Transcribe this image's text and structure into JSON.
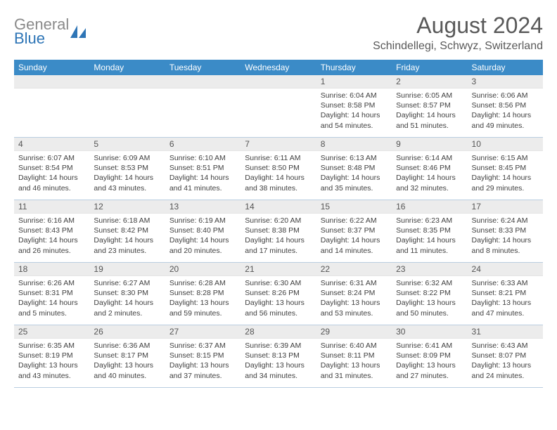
{
  "brand": {
    "part1": "General",
    "part2": "Blue"
  },
  "title": "August 2024",
  "location": "Schindellegi, Schwyz, Switzerland",
  "colors": {
    "header_bar": "#3b8bc7",
    "header_text": "#ffffff",
    "day_bar_bg": "#ececec",
    "divider": "#b9cde0",
    "body_text": "#404040",
    "title_text": "#595959",
    "logo_gray": "#8a8a8a",
    "logo_blue": "#2e75b6"
  },
  "weekdays": [
    "Sunday",
    "Monday",
    "Tuesday",
    "Wednesday",
    "Thursday",
    "Friday",
    "Saturday"
  ],
  "weeks": [
    [
      null,
      null,
      null,
      null,
      {
        "n": "1",
        "sr": "6:04 AM",
        "ss": "8:58 PM",
        "dl": "14 hours and 54 minutes."
      },
      {
        "n": "2",
        "sr": "6:05 AM",
        "ss": "8:57 PM",
        "dl": "14 hours and 51 minutes."
      },
      {
        "n": "3",
        "sr": "6:06 AM",
        "ss": "8:56 PM",
        "dl": "14 hours and 49 minutes."
      }
    ],
    [
      {
        "n": "4",
        "sr": "6:07 AM",
        "ss": "8:54 PM",
        "dl": "14 hours and 46 minutes."
      },
      {
        "n": "5",
        "sr": "6:09 AM",
        "ss": "8:53 PM",
        "dl": "14 hours and 43 minutes."
      },
      {
        "n": "6",
        "sr": "6:10 AM",
        "ss": "8:51 PM",
        "dl": "14 hours and 41 minutes."
      },
      {
        "n": "7",
        "sr": "6:11 AM",
        "ss": "8:50 PM",
        "dl": "14 hours and 38 minutes."
      },
      {
        "n": "8",
        "sr": "6:13 AM",
        "ss": "8:48 PM",
        "dl": "14 hours and 35 minutes."
      },
      {
        "n": "9",
        "sr": "6:14 AM",
        "ss": "8:46 PM",
        "dl": "14 hours and 32 minutes."
      },
      {
        "n": "10",
        "sr": "6:15 AM",
        "ss": "8:45 PM",
        "dl": "14 hours and 29 minutes."
      }
    ],
    [
      {
        "n": "11",
        "sr": "6:16 AM",
        "ss": "8:43 PM",
        "dl": "14 hours and 26 minutes."
      },
      {
        "n": "12",
        "sr": "6:18 AM",
        "ss": "8:42 PM",
        "dl": "14 hours and 23 minutes."
      },
      {
        "n": "13",
        "sr": "6:19 AM",
        "ss": "8:40 PM",
        "dl": "14 hours and 20 minutes."
      },
      {
        "n": "14",
        "sr": "6:20 AM",
        "ss": "8:38 PM",
        "dl": "14 hours and 17 minutes."
      },
      {
        "n": "15",
        "sr": "6:22 AM",
        "ss": "8:37 PM",
        "dl": "14 hours and 14 minutes."
      },
      {
        "n": "16",
        "sr": "6:23 AM",
        "ss": "8:35 PM",
        "dl": "14 hours and 11 minutes."
      },
      {
        "n": "17",
        "sr": "6:24 AM",
        "ss": "8:33 PM",
        "dl": "14 hours and 8 minutes."
      }
    ],
    [
      {
        "n": "18",
        "sr": "6:26 AM",
        "ss": "8:31 PM",
        "dl": "14 hours and 5 minutes."
      },
      {
        "n": "19",
        "sr": "6:27 AM",
        "ss": "8:30 PM",
        "dl": "14 hours and 2 minutes."
      },
      {
        "n": "20",
        "sr": "6:28 AM",
        "ss": "8:28 PM",
        "dl": "13 hours and 59 minutes."
      },
      {
        "n": "21",
        "sr": "6:30 AM",
        "ss": "8:26 PM",
        "dl": "13 hours and 56 minutes."
      },
      {
        "n": "22",
        "sr": "6:31 AM",
        "ss": "8:24 PM",
        "dl": "13 hours and 53 minutes."
      },
      {
        "n": "23",
        "sr": "6:32 AM",
        "ss": "8:22 PM",
        "dl": "13 hours and 50 minutes."
      },
      {
        "n": "24",
        "sr": "6:33 AM",
        "ss": "8:21 PM",
        "dl": "13 hours and 47 minutes."
      }
    ],
    [
      {
        "n": "25",
        "sr": "6:35 AM",
        "ss": "8:19 PM",
        "dl": "13 hours and 43 minutes."
      },
      {
        "n": "26",
        "sr": "6:36 AM",
        "ss": "8:17 PM",
        "dl": "13 hours and 40 minutes."
      },
      {
        "n": "27",
        "sr": "6:37 AM",
        "ss": "8:15 PM",
        "dl": "13 hours and 37 minutes."
      },
      {
        "n": "28",
        "sr": "6:39 AM",
        "ss": "8:13 PM",
        "dl": "13 hours and 34 minutes."
      },
      {
        "n": "29",
        "sr": "6:40 AM",
        "ss": "8:11 PM",
        "dl": "13 hours and 31 minutes."
      },
      {
        "n": "30",
        "sr": "6:41 AM",
        "ss": "8:09 PM",
        "dl": "13 hours and 27 minutes."
      },
      {
        "n": "31",
        "sr": "6:43 AM",
        "ss": "8:07 PM",
        "dl": "13 hours and 24 minutes."
      }
    ]
  ],
  "labels": {
    "sunrise": "Sunrise: ",
    "sunset": "Sunset: ",
    "daylight": "Daylight: "
  }
}
